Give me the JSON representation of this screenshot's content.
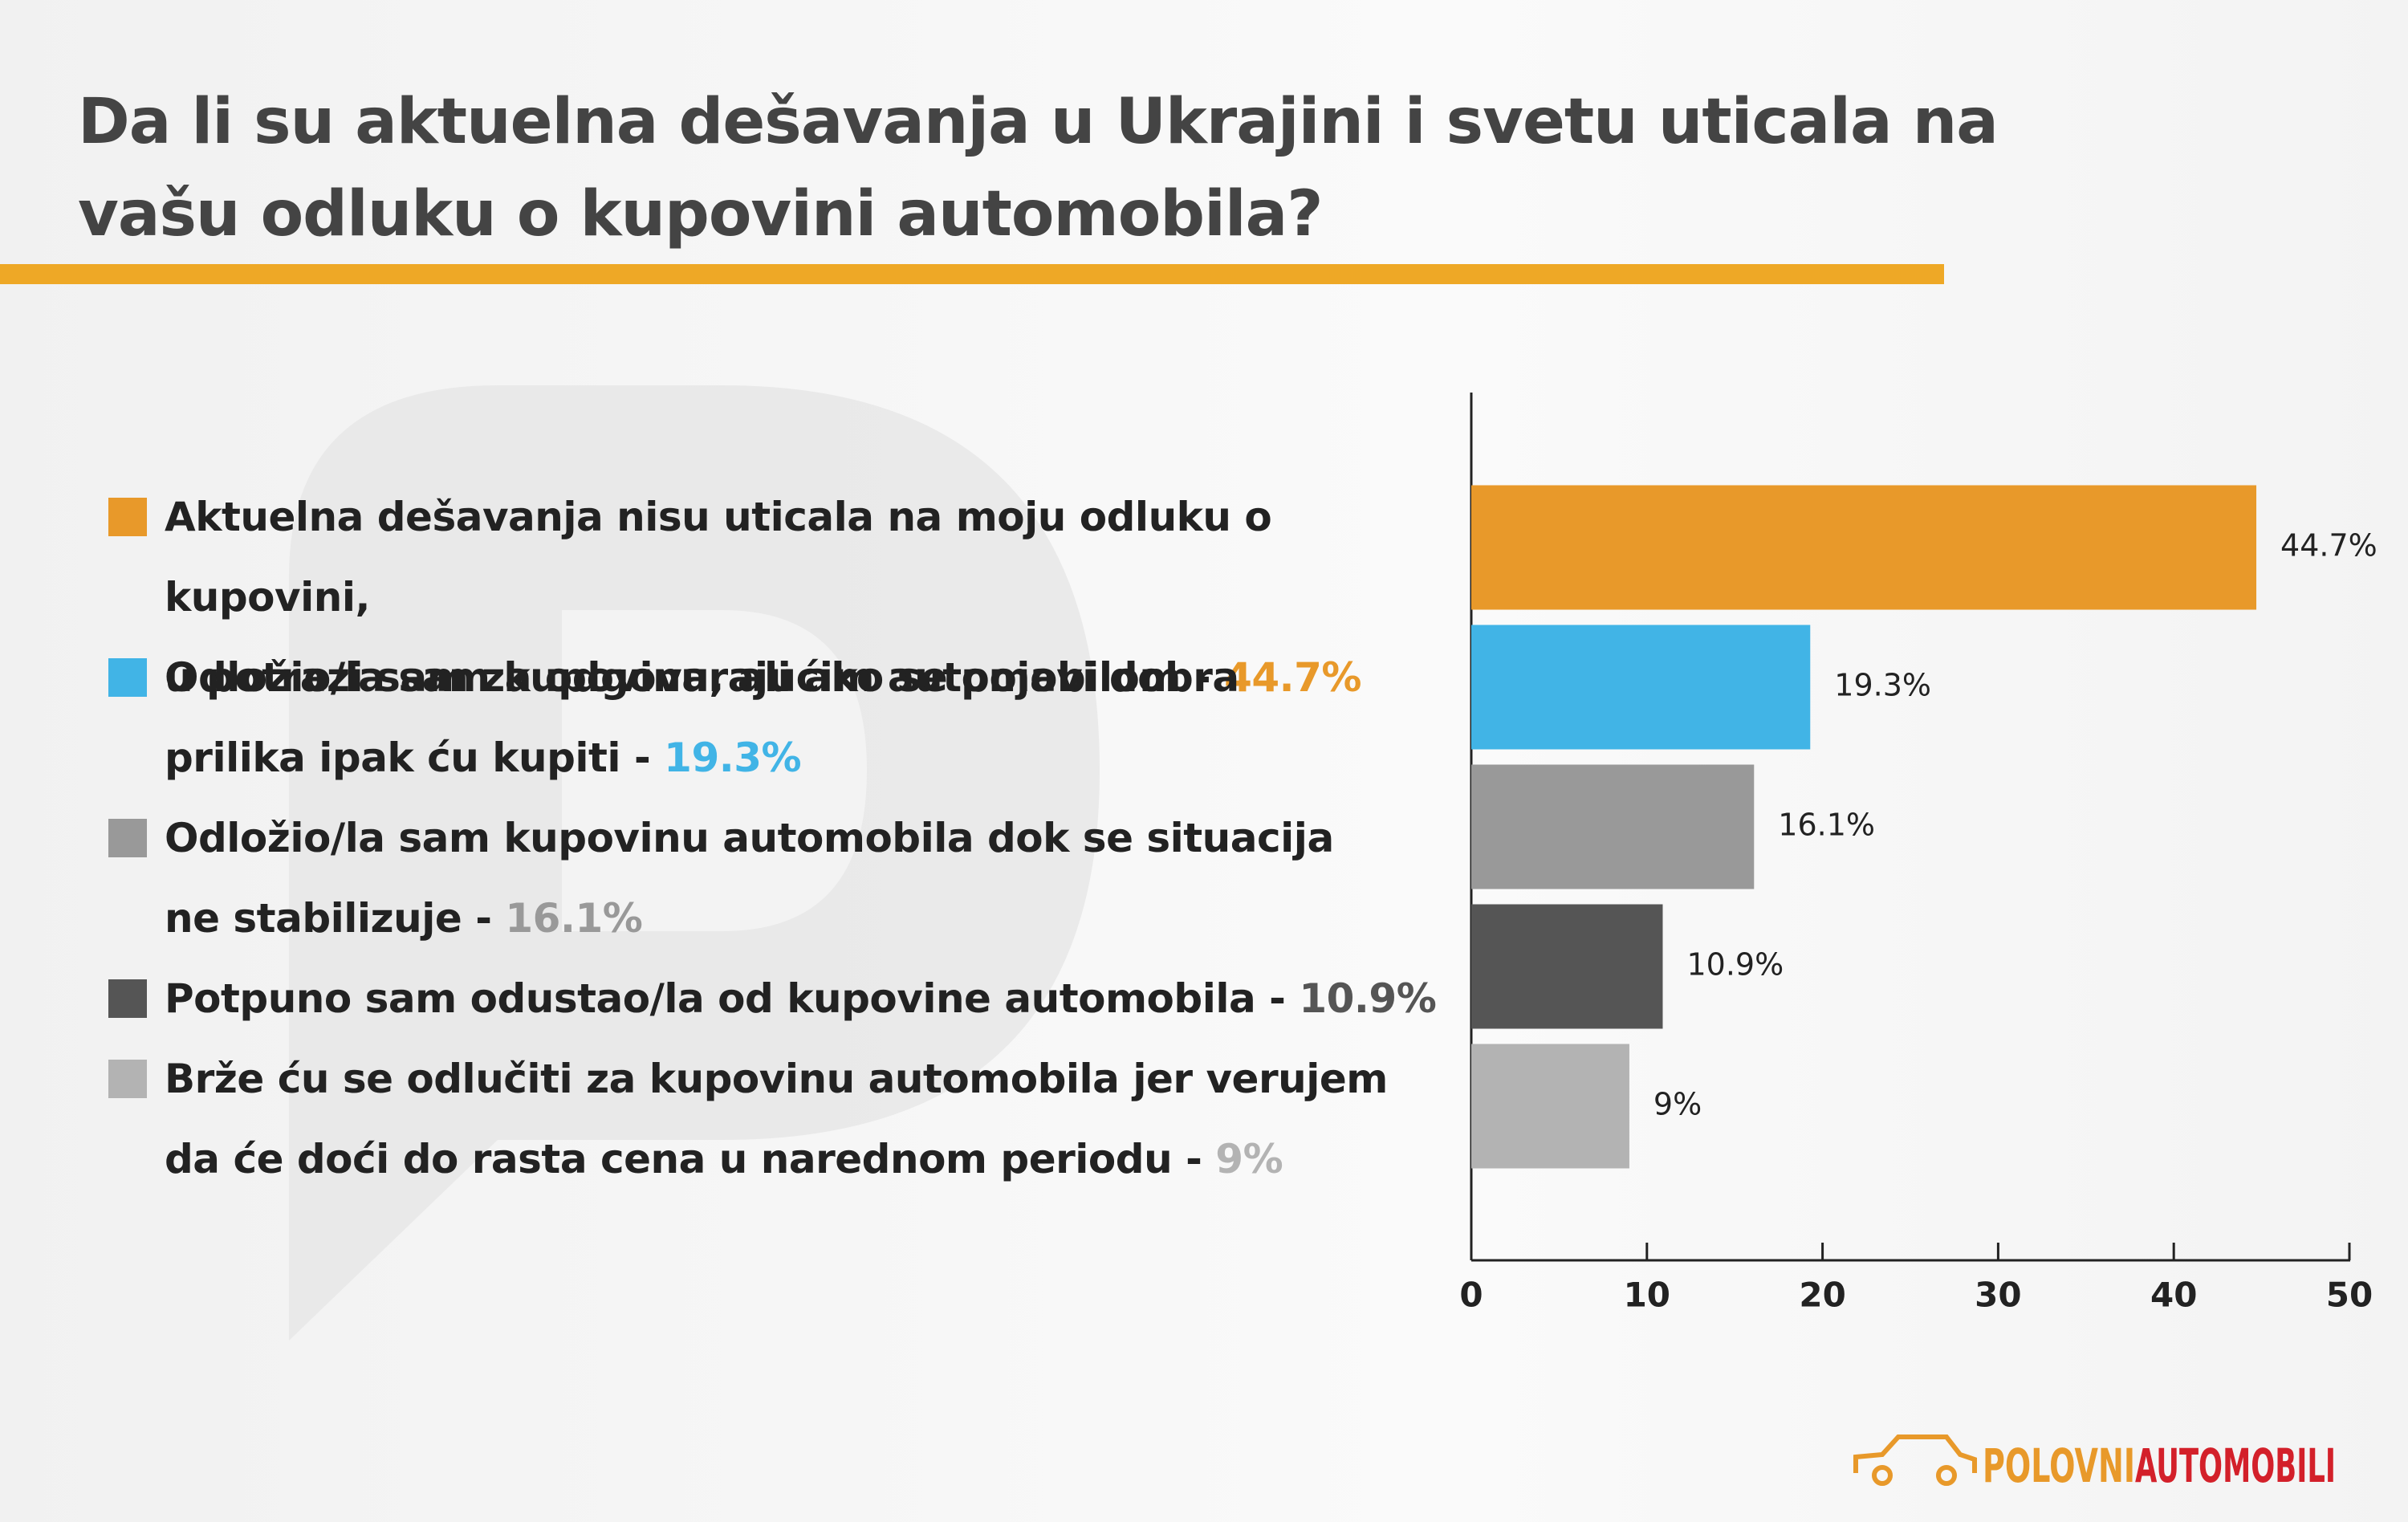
{
  "chart_data": {
    "type": "bar",
    "orientation": "horizontal",
    "title": "Da li su aktuelna dešavanja u Ukrajini i svetu uticala na\nvašu odluku o kupovini automobila?",
    "categories": [
      "Aktuelna dešavanja nisu uticala na moju odluku o kupovini,\nu potrazi sam za odgovarajućim automobilom",
      "Odložio/la sam kupovinu, ali ako se pojavi dobra\nprilika ipak ću kupiti",
      "Odložio/la sam kupovinu automobila dok se situacija\nne stabilizuje",
      "Potpuno sam odustao/la od kupovine automobila",
      "Brže ću se odlučiti za kupovinu automobila jer verujem\nda će doći do rasta cena u narednom periodu"
    ],
    "separator": "-",
    "values": [
      44.7,
      19.3,
      16.1,
      10.9,
      9
    ],
    "value_labels": [
      "44.7%",
      "19.3%",
      "16.1%",
      "10.9%",
      "9%"
    ],
    "colors": [
      "#e8992a",
      "#41b4e6",
      "#999999",
      "#555555",
      "#b3b3b3"
    ],
    "xlim": [
      0,
      50
    ],
    "xticks": [
      0,
      10,
      20,
      30,
      40,
      50
    ],
    "logo": [
      "POLOVNI",
      "AUTOMOBILI"
    ]
  }
}
